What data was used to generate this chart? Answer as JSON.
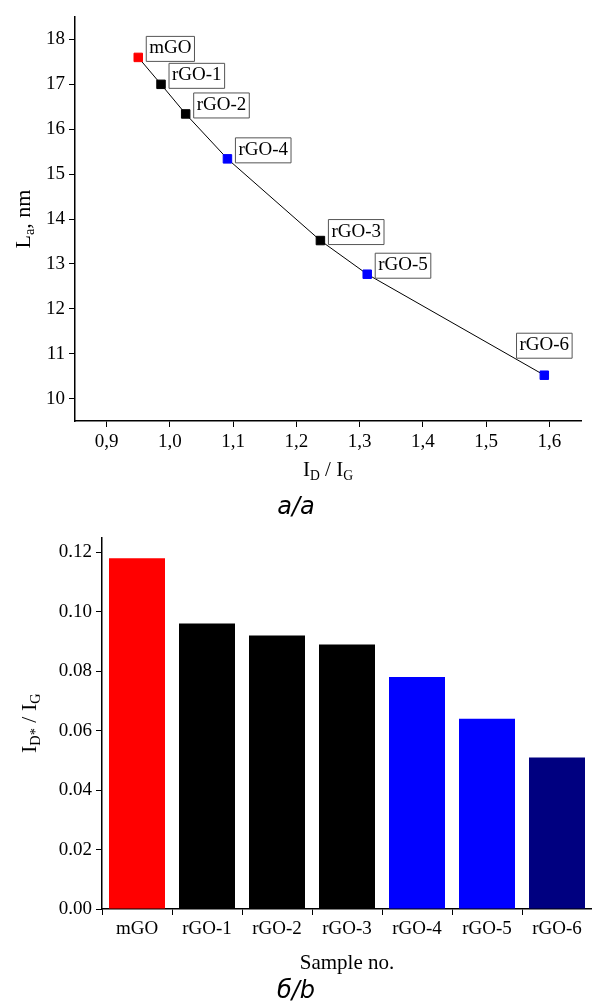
{
  "chart_data": [
    {
      "type": "line",
      "xlabel": "I$_{D}$ / I$_{G}$",
      "ylabel": "L$_{a}$, nm",
      "x": [
        0.95,
        0.986,
        1.025,
        1.091,
        1.238,
        1.312,
        1.592
      ],
      "series": [
        {
          "color": "#000000",
          "colors": [
            "#ff0000",
            "#000000",
            "#000000",
            "#0000ff",
            "#000000",
            "#0000ff",
            "#0000ff"
          ],
          "values": [
            17.6,
            17.0,
            16.34,
            15.34,
            13.52,
            12.77,
            10.52
          ]
        }
      ],
      "xlim": [
        0.85,
        1.65
      ],
      "ylim": [
        9.5,
        18.5
      ],
      "xticks": [
        {
          "value": 0.9,
          "label": "0,9"
        },
        {
          "value": 1.0,
          "label": "1,0"
        },
        {
          "value": 1.1,
          "label": "1,1"
        },
        {
          "value": 1.2,
          "label": "1,2"
        },
        {
          "value": 1.3,
          "label": "1,3"
        },
        {
          "value": 1.4,
          "label": "1,4"
        },
        {
          "value": 1.5,
          "label": "1,5"
        },
        {
          "value": 1.6,
          "label": "1,6"
        }
      ],
      "yticks": [
        10,
        11,
        12,
        13,
        14,
        15,
        16,
        17,
        18
      ],
      "marker": "square",
      "line_style": "solid",
      "grid": false,
      "legend": false,
      "annotations": [
        {
          "text": "mGO",
          "x": 0.95,
          "y": 17.6
        },
        {
          "text": "rGO-1",
          "x": 0.986,
          "y": 17.0
        },
        {
          "text": "rGO-2",
          "x": 1.025,
          "y": 16.34
        },
        {
          "text": "rGO-4",
          "x": 1.091,
          "y": 15.34
        },
        {
          "text": "rGO-3",
          "x": 1.238,
          "y": 13.52
        },
        {
          "text": "rGO-5",
          "x": 1.312,
          "y": 12.77
        },
        {
          "text": "rGO-6",
          "x": 1.592,
          "y": 10.52
        },
        "а/a"
      ]
    },
    {
      "type": "bar",
      "xlabel": "Sample no.",
      "ylabel": "I$_{D*}$ / I$_{G}$",
      "categories": [
        "mGO",
        "rGO-1",
        "rGO-2",
        "rGO-3",
        "rGO-4",
        "rGO-5",
        "rGO-6"
      ],
      "values": [
        0.118,
        0.096,
        0.092,
        0.089,
        0.078,
        0.064,
        0.051
      ],
      "colors": [
        "#ff0000",
        "#000000",
        "#000000",
        "#000000",
        "#0000ff",
        "#0000ff",
        "#000080"
      ],
      "ylim": [
        0,
        0.125
      ],
      "yticks": [
        {
          "value": 0,
          "label": "0.00"
        },
        {
          "value": 0.02,
          "label": "0.02"
        },
        {
          "value": 0.04,
          "label": "0.04"
        },
        {
          "value": 0.06,
          "label": "0.06"
        },
        {
          "value": 0.08,
          "label": "0.08"
        },
        {
          "value": 0.1,
          "label": "0.10"
        },
        {
          "value": 0.12,
          "label": "0.12"
        }
      ],
      "grid": false,
      "legend": false,
      "annotations": [
        "б/b"
      ]
    }
  ]
}
